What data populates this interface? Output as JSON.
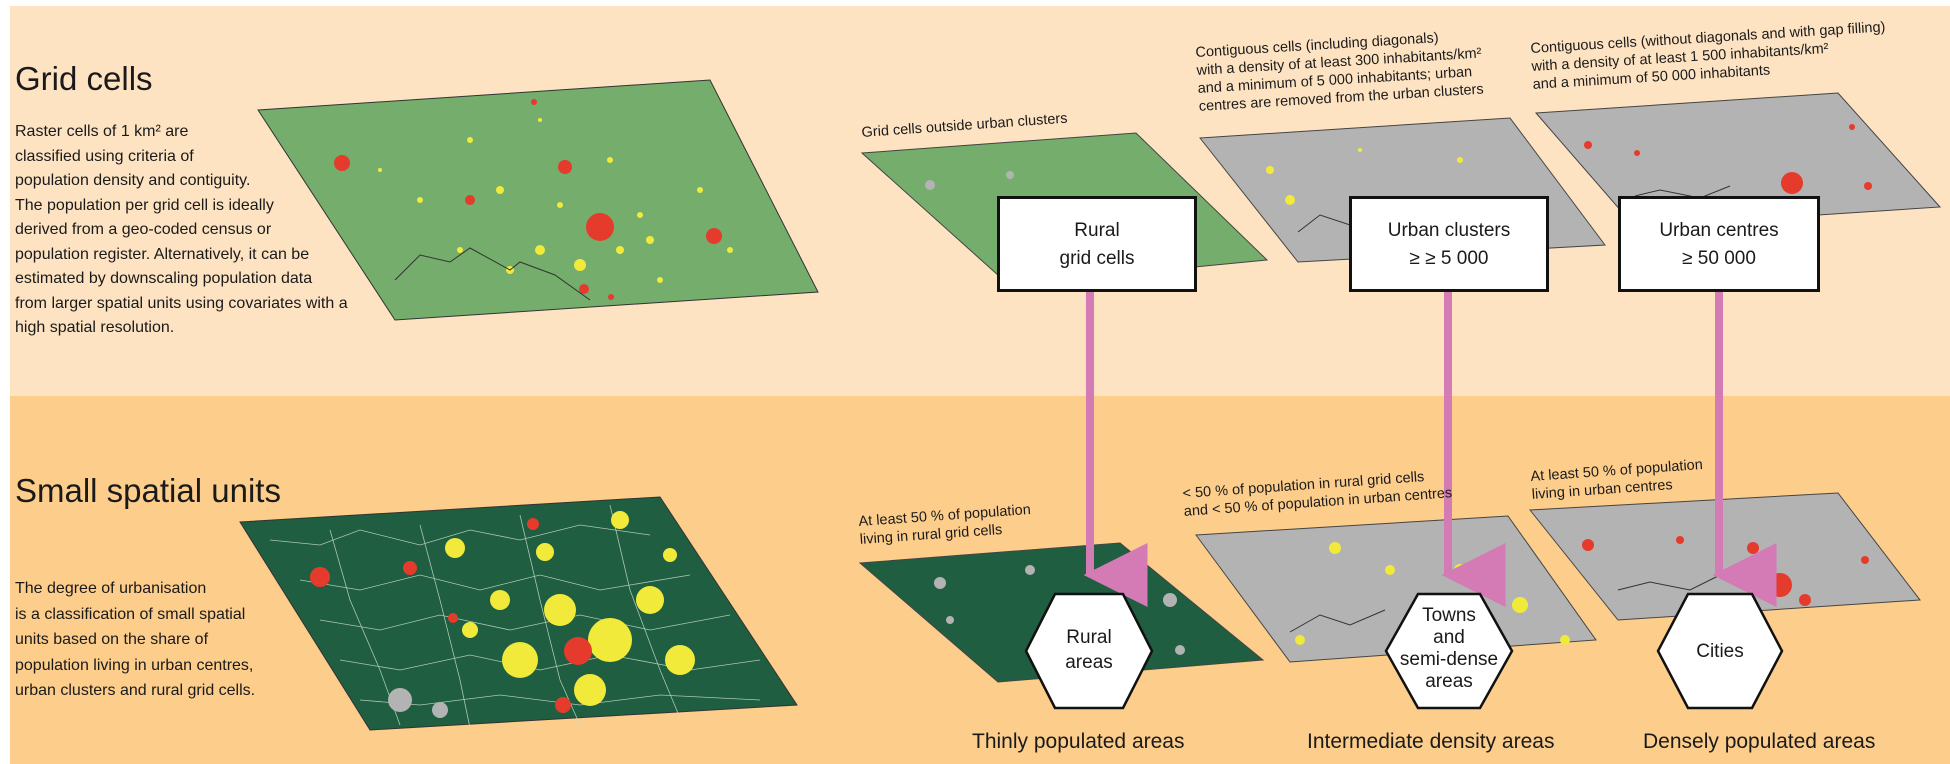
{
  "figure_title": "",
  "top": {
    "title": "Grid cells",
    "description": "Raster cells of 1 km² are\nclassified using criteria of\npopulation density and contiguity.\nThe population per grid cell is ideally\nderived from a geo-coded census or\npopulation register. Alternatively, it can be\nestimated by downscaling population data\nfrom larger spatial units using covariates with a\nhigh spatial resolution.",
    "captions": {
      "rural": "Grid cells outside urban clusters",
      "clusters": "Contiguous cells (including diagonals)\nwith a density of at least 300 inhabitants/km²\nand a minimum of 5 000 inhabitants; urban\ncentres are removed from the urban clusters",
      "centres": "Contiguous cells (without diagonals and with gap filling)\nwith a density of at least 1 500 inhabitants/km²\nand a minimum of 50 000 inhabitants"
    },
    "boxes": {
      "rural": "Rural\ngrid cells",
      "clusters": "Urban clusters\n≥ ≥ 5 000",
      "centres": "Urban centres\n≥ 50 000"
    }
  },
  "bottom": {
    "title": "Small spatial units",
    "description": "The degree of urbanisation\nis a classification of small spatial\nunits based on the share of\npopulation living in urban centres,\nurban clusters and rural grid cells.",
    "captions": {
      "rural": "At least 50 % of population\nliving in rural grid cells",
      "towns": "< 50 % of population in rural grid cells\nand < 50 % of population in urban centres",
      "cities": "At least 50 % of population\nliving in urban centres"
    },
    "hexagons": {
      "rural": [
        "Rural",
        "areas"
      ],
      "towns": [
        "Towns",
        "and",
        "semi-dense",
        "areas"
      ],
      "cities": [
        "Cities"
      ]
    },
    "labels": {
      "rural": "Thinly populated areas",
      "towns": "Intermediate density areas",
      "cities": "Densely populated areas"
    }
  },
  "colors": {
    "map_green": "#74ad6c",
    "map_dark_green": "#1f5e40",
    "map_grey": "#b3b3b3",
    "urban_red": "#e53b2c",
    "cluster_yellow": "#f2ea3a",
    "arrow_pink": "#d47ab5"
  }
}
